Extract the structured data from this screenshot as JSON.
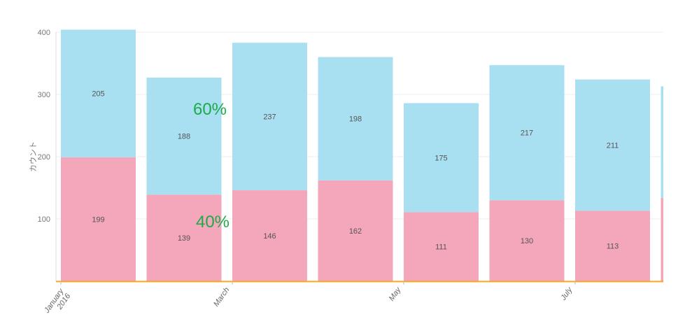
{
  "chart_data": {
    "type": "bar",
    "stacked": true,
    "ylabel": "カウント",
    "ylim": [
      0,
      400
    ],
    "y_ticks": [
      100,
      200,
      300,
      400
    ],
    "grid": true,
    "x_tick_labels": [
      {
        "lines": [
          "January",
          "2016"
        ],
        "category_index": 0
      },
      {
        "lines": [
          "March"
        ],
        "category_index": 2
      },
      {
        "lines": [
          "May"
        ],
        "category_index": 4
      },
      {
        "lines": [
          "July"
        ],
        "category_index": 6
      }
    ],
    "series": [
      {
        "color": "#f4a6ba",
        "values": [
          199,
          139,
          146,
          162,
          111,
          130,
          113,
          134
        ]
      },
      {
        "color": "#a8e0f2",
        "values": [
          205,
          188,
          237,
          198,
          175,
          217,
          211,
          179
        ]
      }
    ],
    "data_labels": [
      [
        "199",
        "139",
        "146",
        "162",
        "111",
        "130",
        "113",
        ""
      ],
      [
        "205",
        "188",
        "237",
        "198",
        "175",
        "217",
        "211",
        ""
      ]
    ],
    "baseline_color": "#f5a623",
    "annotations": [
      {
        "text": "60%",
        "color": "#1faa4a"
      },
      {
        "text": "40%",
        "color": "#1faa4a"
      }
    ]
  }
}
